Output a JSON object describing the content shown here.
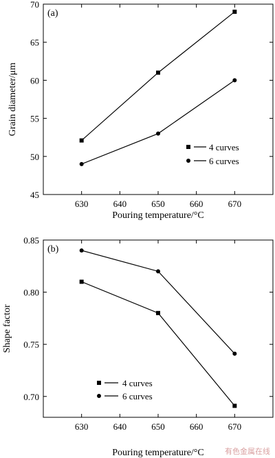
{
  "chart_data": [
    {
      "type": "line",
      "panel_label": "(a)",
      "x": [
        630,
        650,
        670
      ],
      "series": [
        {
          "name": "4 curves",
          "marker": "square",
          "values": [
            52.1,
            61.0,
            69.0
          ]
        },
        {
          "name": "6 curves",
          "marker": "circle",
          "values": [
            49.0,
            53.0,
            60.0
          ]
        }
      ],
      "xlabel": "Pouring temperature/°C",
      "ylabel": "Grain diameter/μm",
      "xlim": [
        620,
        680
      ],
      "ylim": [
        45,
        70
      ],
      "xticks": [
        630,
        640,
        650,
        660,
        670
      ],
      "yticks": [
        45,
        50,
        55,
        60,
        65,
        70
      ],
      "legend_position": "lower-right",
      "grid": false
    },
    {
      "type": "line",
      "panel_label": "(b)",
      "x": [
        630,
        650,
        670
      ],
      "series": [
        {
          "name": "4 curves",
          "marker": "square",
          "values": [
            0.81,
            0.78,
            0.691
          ]
        },
        {
          "name": "6 curves",
          "marker": "circle",
          "values": [
            0.84,
            0.82,
            0.741
          ]
        }
      ],
      "xlabel": "Pouring temperature/°C",
      "ylabel": "Shape factor",
      "xlim": [
        620,
        680
      ],
      "ylim": [
        0.68,
        0.85
      ],
      "xticks": [
        630,
        640,
        650,
        660,
        670
      ],
      "yticks": [
        0.7,
        0.75,
        0.8,
        0.85
      ],
      "ytick_labels": [
        "0.70",
        "0.75",
        "0.80",
        "0.85"
      ],
      "legend_position": "lower-left",
      "grid": false
    }
  ],
  "watermark": "有色金属在线",
  "colors": {
    "ink": "#000000",
    "watermark": "#d9a0a0"
  }
}
